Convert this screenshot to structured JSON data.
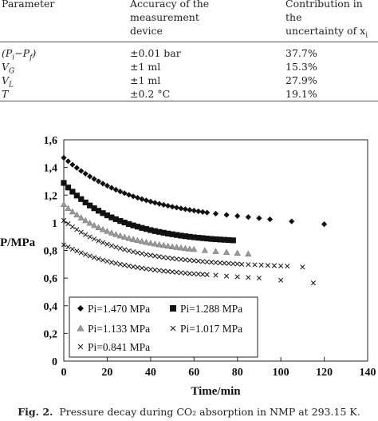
{
  "table": {
    "headers": [
      "Parameter",
      "Accuracy of the measurement device",
      "Contribution in the uncertainty of x_i"
    ],
    "header_lines": [
      [
        "Parameter"
      ],
      [
        "Accuracy of the",
        "measurement",
        "device"
      ],
      [
        "Contribution in the",
        "uncertainty of x_i"
      ]
    ],
    "rows": [
      [
        "(P_i−P_f)",
        "±0.01 bar",
        "37.7%"
      ],
      [
        "V_G",
        "±1 ml",
        "15.3%"
      ],
      [
        "V_L",
        "±1 ml",
        "27.9%"
      ],
      [
        "T",
        "±0.2 °C",
        "19.1%"
      ]
    ]
  },
  "chart_data": {
    "type": "scatter",
    "xlabel": "Time/min",
    "ylabel": "P/MPa",
    "xlim": [
      0,
      140
    ],
    "ylim": [
      0,
      1.6
    ],
    "xticks": [
      "0",
      "20",
      "40",
      "60",
      "80",
      "100",
      "120",
      "140"
    ],
    "yticks": [
      "0",
      "0,2",
      "0,4",
      "0,6",
      "0,8",
      "1",
      "1,2",
      "1,4",
      "1,6"
    ],
    "grid": false,
    "legend_position": "bottom-left inside",
    "series": [
      {
        "name": "Pi=1.470 MPa",
        "marker": "diamond",
        "color": "#111111",
        "x": [
          0,
          2,
          4,
          6,
          8,
          10,
          12,
          14,
          16,
          18,
          20,
          22,
          24,
          26,
          28,
          30,
          32,
          34,
          36,
          38,
          40,
          42,
          44,
          46,
          48,
          50,
          52,
          54,
          56,
          58,
          60,
          62,
          64,
          66,
          70,
          75,
          80,
          85,
          90,
          95,
          105,
          120
        ],
        "y": [
          1.47,
          1.445,
          1.42,
          1.397,
          1.375,
          1.355,
          1.335,
          1.317,
          1.3,
          1.283,
          1.268,
          1.253,
          1.239,
          1.226,
          1.214,
          1.202,
          1.191,
          1.181,
          1.171,
          1.162,
          1.153,
          1.145,
          1.137,
          1.13,
          1.123,
          1.116,
          1.11,
          1.104,
          1.098,
          1.093,
          1.088,
          1.083,
          1.078,
          1.074,
          1.066,
          1.057,
          1.049,
          1.041,
          1.033,
          1.025,
          1.01,
          0.99
        ]
      },
      {
        "name": "Pi=1.288 MPa",
        "marker": "square",
        "color": "#111111",
        "x": [
          0,
          2,
          4,
          6,
          8,
          10,
          12,
          14,
          16,
          18,
          20,
          22,
          24,
          26,
          28,
          30,
          32,
          34,
          36,
          38,
          40,
          42,
          44,
          46,
          48,
          50,
          52,
          54,
          56,
          58,
          60,
          62,
          64,
          66,
          68,
          70,
          72,
          74,
          76,
          78
        ],
        "y": [
          1.288,
          1.255,
          1.225,
          1.197,
          1.171,
          1.147,
          1.125,
          1.105,
          1.087,
          1.07,
          1.054,
          1.039,
          1.026,
          1.013,
          1.002,
          0.991,
          0.981,
          0.972,
          0.963,
          0.955,
          0.947,
          0.94,
          0.934,
          0.928,
          0.922,
          0.917,
          0.912,
          0.907,
          0.903,
          0.899,
          0.895,
          0.892,
          0.889,
          0.886,
          0.883,
          0.881,
          0.879,
          0.877,
          0.875,
          0.873
        ]
      },
      {
        "name": "Pi=1.133 MPa",
        "marker": "triangle",
        "color": "#9a9a9a",
        "x": [
          0,
          2,
          4,
          6,
          8,
          10,
          12,
          14,
          16,
          18,
          20,
          22,
          24,
          26,
          28,
          30,
          32,
          34,
          36,
          38,
          40,
          42,
          44,
          46,
          48,
          50,
          52,
          54,
          56,
          58,
          60,
          65,
          70,
          75,
          80,
          85
        ],
        "y": [
          1.133,
          1.105,
          1.08,
          1.057,
          1.036,
          1.016,
          0.998,
          0.981,
          0.966,
          0.952,
          0.939,
          0.927,
          0.916,
          0.906,
          0.897,
          0.888,
          0.88,
          0.873,
          0.866,
          0.859,
          0.853,
          0.847,
          0.842,
          0.837,
          0.832,
          0.827,
          0.823,
          0.819,
          0.815,
          0.811,
          0.808,
          0.8,
          0.793,
          0.787,
          0.781,
          0.775
        ]
      },
      {
        "name": "Pi=1.017 MPa",
        "marker": "x",
        "color": "#111111",
        "x": [
          0,
          2,
          4,
          6,
          8,
          10,
          12,
          14,
          16,
          18,
          20,
          22,
          24,
          26,
          28,
          30,
          32,
          34,
          36,
          38,
          40,
          42,
          44,
          46,
          48,
          50,
          52,
          54,
          56,
          58,
          60,
          62,
          64,
          66,
          68,
          70,
          72,
          74,
          76,
          78,
          80,
          82,
          85,
          88,
          91,
          94,
          97,
          100,
          103,
          110
        ],
        "y": [
          1.017,
          0.993,
          0.971,
          0.951,
          0.932,
          0.914,
          0.898,
          0.883,
          0.869,
          0.857,
          0.845,
          0.834,
          0.824,
          0.815,
          0.806,
          0.798,
          0.79,
          0.783,
          0.777,
          0.771,
          0.765,
          0.76,
          0.755,
          0.75,
          0.746,
          0.742,
          0.738,
          0.735,
          0.732,
          0.729,
          0.726,
          0.723,
          0.72,
          0.717,
          0.715,
          0.712,
          0.71,
          0.708,
          0.706,
          0.704,
          0.702,
          0.7,
          0.698,
          0.696,
          0.694,
          0.692,
          0.69,
          0.688,
          0.686,
          0.68
        ]
      },
      {
        "name": "Pi=0.841 MPa",
        "marker": "x",
        "color": "#111111",
        "x": [
          0,
          2,
          4,
          6,
          8,
          10,
          12,
          14,
          16,
          18,
          20,
          22,
          24,
          26,
          28,
          30,
          32,
          34,
          36,
          38,
          40,
          42,
          44,
          46,
          48,
          50,
          52,
          54,
          56,
          58,
          60,
          62,
          64,
          66,
          70,
          75,
          80,
          85,
          90,
          100,
          115
        ],
        "y": [
          0.841,
          0.825,
          0.81,
          0.796,
          0.783,
          0.771,
          0.76,
          0.749,
          0.739,
          0.73,
          0.722,
          0.714,
          0.707,
          0.7,
          0.694,
          0.688,
          0.682,
          0.677,
          0.672,
          0.667,
          0.663,
          0.659,
          0.655,
          0.651,
          0.648,
          0.645,
          0.642,
          0.639,
          0.636,
          0.633,
          0.631,
          0.629,
          0.627,
          0.625,
          0.621,
          0.615,
          0.61,
          0.605,
          0.6,
          0.585,
          0.565
        ]
      }
    ]
  },
  "caption": {
    "label": "Fig. 2.",
    "text": "Pressure decay during CO₂ absorption in NMP at 293.15 K."
  }
}
